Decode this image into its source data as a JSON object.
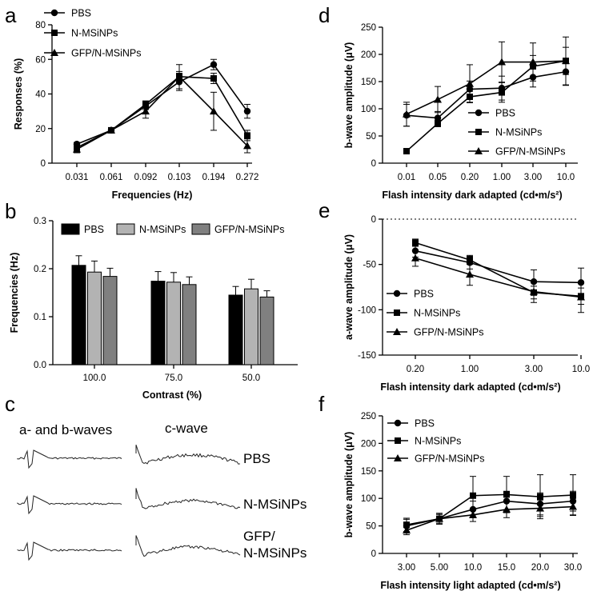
{
  "series_names": [
    "PBS",
    "N-MSiNPs",
    "GFP/N-MSiNPs"
  ],
  "panel_labels": {
    "a": "a",
    "b": "b",
    "c": "c",
    "d": "d",
    "e": "e",
    "f": "f"
  },
  "chart_data": [
    {
      "id": "a",
      "type": "line",
      "categories": [
        "0.031",
        "0.061",
        "0.092",
        "0.103",
        "0.194",
        "0.272"
      ],
      "ylabel": "Responses (%)",
      "xlabel": "Frequencies (Hz)",
      "ylim": [
        0,
        80
      ],
      "yticks": [
        0,
        20,
        40,
        60,
        80
      ],
      "series": [
        {
          "name": "PBS",
          "marker": "circle",
          "values": [
            11,
            19,
            33,
            47,
            57,
            30
          ],
          "err": [
            1,
            1,
            2,
            5,
            3,
            4
          ]
        },
        {
          "name": "N-MSiNPs",
          "marker": "square",
          "values": [
            9,
            19,
            34,
            50,
            49,
            16
          ],
          "err": [
            1,
            1,
            2,
            3,
            3,
            3
          ]
        },
        {
          "name": "GFP/N-MSiNPs",
          "marker": "triangle",
          "values": [
            8,
            19,
            30,
            50,
            30,
            10
          ],
          "err": [
            2,
            1,
            4,
            7,
            11,
            4
          ]
        }
      ]
    },
    {
      "id": "b",
      "type": "bar",
      "categories": [
        "100.0",
        "75.0",
        "50.0"
      ],
      "ylabel": "Frequencies (Hz)",
      "xlabel": "Contrast (%)",
      "ylim": [
        0,
        0.3
      ],
      "yticks": [
        "0.0",
        "0.1",
        "0.2",
        "0.3"
      ],
      "series": [
        {
          "name": "PBS",
          "color": "#000000",
          "values": [
            0.207,
            0.174,
            0.145
          ],
          "err": [
            0.02,
            0.02,
            0.018
          ]
        },
        {
          "name": "N-MSiNPs",
          "color": "#b3b3b3",
          "values": [
            0.193,
            0.172,
            0.158
          ],
          "err": [
            0.023,
            0.02,
            0.02
          ]
        },
        {
          "name": "GFP/N-MSiNPs",
          "color": "#808080",
          "values": [
            0.184,
            0.167,
            0.141
          ],
          "err": [
            0.017,
            0.016,
            0.013
          ]
        }
      ]
    },
    {
      "id": "d",
      "type": "line",
      "categories": [
        "0.01",
        "0.05",
        "0.20",
        "1.00",
        "3.00",
        "10.0"
      ],
      "ylabel": "b-wave amplitude (μV)",
      "xlabel": "Flash intensity dark adapted (cd•m/s²)",
      "ylim": [
        0,
        250
      ],
      "yticks": [
        0,
        50,
        100,
        150,
        200,
        250
      ],
      "series": [
        {
          "name": "PBS",
          "marker": "circle",
          "values": [
            88,
            83,
            136,
            138,
            158,
            168
          ],
          "err": [
            20,
            12,
            15,
            22,
            18,
            25
          ]
        },
        {
          "name": "N-MSiNPs",
          "marker": "square",
          "values": [
            22,
            73,
            122,
            130,
            178,
            188
          ],
          "err": [
            3,
            6,
            10,
            18,
            20,
            25
          ]
        },
        {
          "name": "GFP/N-MSiNPs",
          "marker": "triangle",
          "values": [
            90,
            117,
            146,
            186,
            186,
            188
          ],
          "err": [
            22,
            24,
            35,
            37,
            35,
            44
          ]
        }
      ]
    },
    {
      "id": "e",
      "type": "line",
      "categories": [
        "0.20",
        "1.00",
        "3.00",
        "10.0"
      ],
      "ylabel": "a-wave amplitude (μV)",
      "xlabel": "Flash intensity dark adapted (cd•m/s²)",
      "ylim": [
        -150,
        0
      ],
      "yticks": [
        -150,
        -100,
        -50,
        0
      ],
      "series": [
        {
          "name": "PBS",
          "marker": "circle",
          "values": [
            -35,
            -48,
            -69,
            -70
          ],
          "err": [
            7,
            7,
            13,
            16
          ]
        },
        {
          "name": "N-MSiNPs",
          "marker": "square",
          "values": [
            -26,
            -45,
            -81,
            -85
          ],
          "err": [
            4,
            5,
            7,
            9
          ]
        },
        {
          "name": "GFP/N-MSiNPs",
          "marker": "triangle",
          "values": [
            -43,
            -61,
            -80,
            -86
          ],
          "err": [
            9,
            12,
            12,
            17
          ]
        }
      ]
    },
    {
      "id": "f",
      "type": "line",
      "categories": [
        "3.00",
        "5.00",
        "10.0",
        "15.0",
        "20.0",
        "30.0"
      ],
      "ylabel": "b-wave amplitude (μV)",
      "xlabel": "Flash intensity light adapted (cd•m/s²)",
      "ylim": [
        0,
        250
      ],
      "yticks": [
        0,
        50,
        100,
        150,
        200,
        250
      ],
      "series": [
        {
          "name": "PBS",
          "marker": "circle",
          "values": [
            50,
            63,
            80,
            95,
            90,
            95
          ],
          "err": [
            12,
            8,
            15,
            18,
            20,
            18
          ]
        },
        {
          "name": "N-MSiNPs",
          "marker": "square",
          "values": [
            52,
            63,
            105,
            107,
            103,
            106
          ],
          "err": [
            12,
            10,
            35,
            33,
            40,
            37
          ]
        },
        {
          "name": "GFP/N-MSiNPs",
          "marker": "triangle",
          "values": [
            42,
            63,
            70,
            80,
            82,
            85
          ],
          "err": [
            8,
            8,
            12,
            15,
            15,
            15
          ]
        }
      ]
    }
  ],
  "waves": {
    "col1_title": "a- and b-waves",
    "col2_title": "c-wave",
    "rows": [
      "PBS",
      "N-MSiNPs",
      "GFP/\nN-MSiNPs"
    ]
  }
}
